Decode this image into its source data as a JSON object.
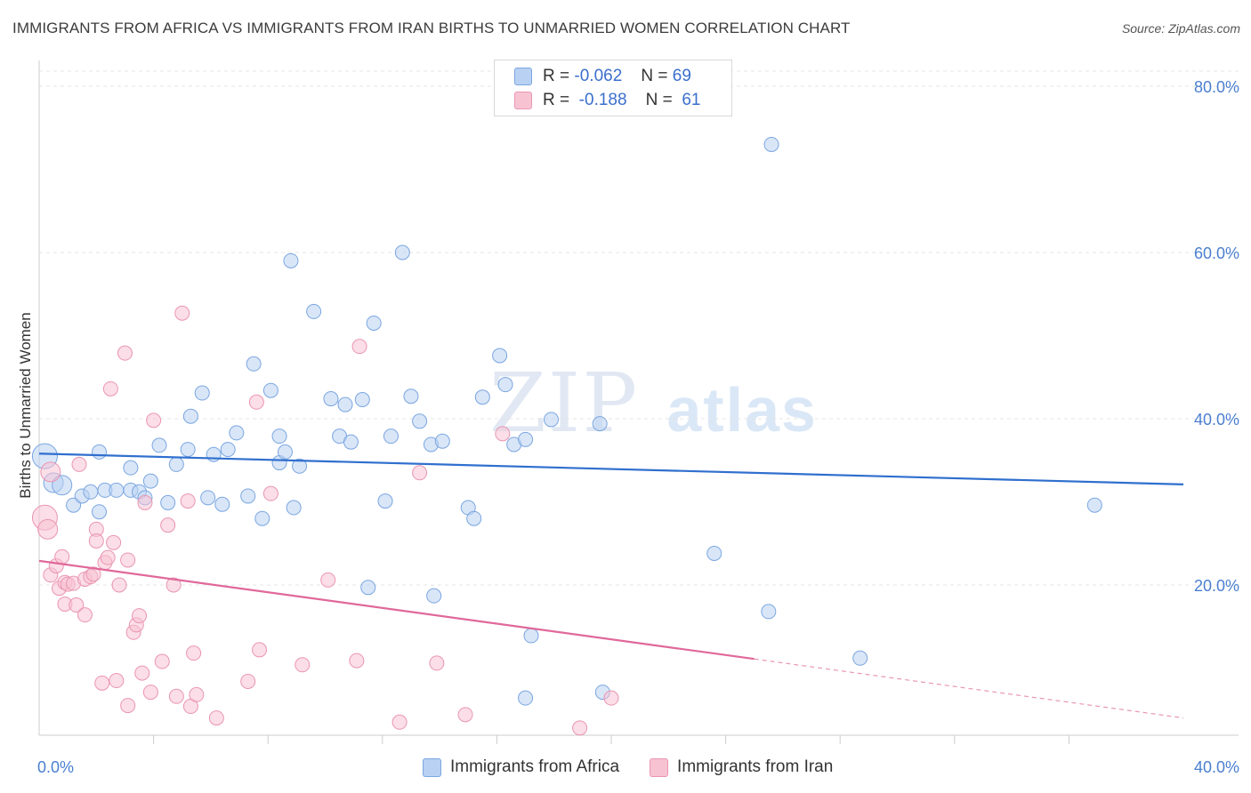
{
  "title": "IMMIGRANTS FROM AFRICA VS IMMIGRANTS FROM IRAN BIRTHS TO UNMARRIED WOMEN CORRELATION CHART",
  "source": "Source: ZipAtlas.com",
  "watermark": {
    "zip": "ZIP",
    "atlas": "atlas"
  },
  "legend": {
    "r_label": "R =",
    "n_label": "N =",
    "rows": [
      {
        "r": "-0.062",
        "n": "69"
      },
      {
        "r": "-0.188",
        "n": "61"
      }
    ]
  },
  "colors": {
    "africa_fill": "#b9d1f3",
    "africa_stroke": "#7aa6e0",
    "africa_line": "#2f6fce",
    "iran_fill": "#f7c3d3",
    "iran_stroke": "#ea95b2",
    "iran_line": "#e0689a",
    "tick_text": "#4a7fd0"
  },
  "chart_data": {
    "type": "scatter",
    "title": "IMMIGRANTS FROM AFRICA VS IMMIGRANTS FROM IRAN BIRTHS TO UNMARRIED WOMEN CORRELATION CHART",
    "xlabel": "",
    "ylabel": "Births to Unmarried Women",
    "xlim": [
      0,
      40
    ],
    "ylim": [
      0,
      80
    ],
    "x_tick_labels": [
      "0.0%",
      "40.0%"
    ],
    "y_tick_labels": [
      "20.0%",
      "40.0%",
      "60.0%",
      "80.0%"
    ],
    "y_tick_values": [
      20,
      40,
      60,
      80
    ],
    "x_minor_ticks": [
      4,
      8,
      12,
      16,
      20,
      24,
      28,
      32,
      36
    ],
    "grid": true,
    "series": [
      {
        "name": "Immigrants from Africa",
        "r": -0.062,
        "n": 69,
        "trend": {
          "x0": 0,
          "y0": 35.8,
          "x1": 40,
          "y1": 32.1
        },
        "points": [
          [
            0.2,
            35.5
          ],
          [
            0.5,
            32.3
          ],
          [
            0.8,
            32.0
          ],
          [
            1.2,
            29.6
          ],
          [
            1.5,
            30.7
          ],
          [
            1.8,
            31.2
          ],
          [
            2.1,
            28.8
          ],
          [
            2.1,
            36.0
          ],
          [
            2.3,
            31.4
          ],
          [
            2.7,
            31.4
          ],
          [
            3.2,
            31.4
          ],
          [
            3.2,
            34.1
          ],
          [
            3.5,
            31.2
          ],
          [
            3.7,
            30.5
          ],
          [
            3.9,
            32.5
          ],
          [
            4.2,
            36.8
          ],
          [
            4.5,
            29.9
          ],
          [
            4.8,
            34.5
          ],
          [
            5.2,
            36.3
          ],
          [
            5.3,
            40.3
          ],
          [
            5.7,
            43.1
          ],
          [
            5.9,
            30.5
          ],
          [
            6.1,
            35.7
          ],
          [
            6.4,
            29.7
          ],
          [
            6.6,
            36.3
          ],
          [
            6.9,
            38.3
          ],
          [
            7.3,
            30.7
          ],
          [
            7.5,
            46.6
          ],
          [
            7.8,
            28.0
          ],
          [
            8.1,
            43.4
          ],
          [
            8.4,
            37.9
          ],
          [
            8.4,
            34.7
          ],
          [
            8.6,
            36.0
          ],
          [
            8.8,
            59.0
          ],
          [
            8.9,
            29.3
          ],
          [
            9.1,
            34.3
          ],
          [
            9.6,
            52.9
          ],
          [
            10.2,
            42.4
          ],
          [
            10.5,
            37.9
          ],
          [
            10.7,
            41.7
          ],
          [
            10.9,
            37.2
          ],
          [
            11.3,
            42.3
          ],
          [
            11.5,
            19.7
          ],
          [
            11.7,
            51.5
          ],
          [
            12.1,
            30.1
          ],
          [
            12.3,
            37.9
          ],
          [
            12.7,
            60.0
          ],
          [
            13.0,
            42.7
          ],
          [
            13.3,
            39.7
          ],
          [
            13.7,
            36.9
          ],
          [
            13.8,
            18.7
          ],
          [
            14.1,
            37.3
          ],
          [
            15.0,
            29.3
          ],
          [
            15.2,
            28.0
          ],
          [
            15.5,
            42.6
          ],
          [
            16.1,
            47.6
          ],
          [
            16.3,
            44.1
          ],
          [
            16.6,
            36.9
          ],
          [
            17.0,
            37.5
          ],
          [
            17.0,
            6.4
          ],
          [
            17.2,
            13.9
          ],
          [
            17.9,
            39.9
          ],
          [
            19.7,
            7.1
          ],
          [
            19.6,
            39.4
          ],
          [
            23.6,
            23.8
          ],
          [
            25.6,
            73.0
          ],
          [
            25.5,
            16.8
          ],
          [
            28.7,
            11.2
          ],
          [
            36.9,
            29.6
          ]
        ]
      },
      {
        "name": "Immigrants from Iran",
        "r": -0.188,
        "n": 61,
        "trend": {
          "x0": 0,
          "y0": 22.9,
          "x1": 25.0,
          "y1": 11.1,
          "dash_x1": 40,
          "dash_y1": 4.0
        },
        "points": [
          [
            0.2,
            28.1
          ],
          [
            0.3,
            26.7
          ],
          [
            0.4,
            33.6
          ],
          [
            0.4,
            21.2
          ],
          [
            0.6,
            22.3
          ],
          [
            0.7,
            19.6
          ],
          [
            0.8,
            23.4
          ],
          [
            0.9,
            17.7
          ],
          [
            0.9,
            20.3
          ],
          [
            1.0,
            20.1
          ],
          [
            1.2,
            20.2
          ],
          [
            1.3,
            17.6
          ],
          [
            1.4,
            34.5
          ],
          [
            1.6,
            20.7
          ],
          [
            1.6,
            16.4
          ],
          [
            1.8,
            21.0
          ],
          [
            1.9,
            21.3
          ],
          [
            2.0,
            26.7
          ],
          [
            2.0,
            25.3
          ],
          [
            2.2,
            8.2
          ],
          [
            2.3,
            22.7
          ],
          [
            2.4,
            23.3
          ],
          [
            2.5,
            43.6
          ],
          [
            2.6,
            25.1
          ],
          [
            2.7,
            8.5
          ],
          [
            2.8,
            20.0
          ],
          [
            3.0,
            47.9
          ],
          [
            3.1,
            5.5
          ],
          [
            3.1,
            23.0
          ],
          [
            3.3,
            14.3
          ],
          [
            3.4,
            15.2
          ],
          [
            3.5,
            16.3
          ],
          [
            3.6,
            9.4
          ],
          [
            3.7,
            29.9
          ],
          [
            3.9,
            7.1
          ],
          [
            4.0,
            39.8
          ],
          [
            4.3,
            10.8
          ],
          [
            4.5,
            27.2
          ],
          [
            4.7,
            20.0
          ],
          [
            4.8,
            6.6
          ],
          [
            5.0,
            52.7
          ],
          [
            5.2,
            30.1
          ],
          [
            5.3,
            5.4
          ],
          [
            5.4,
            11.8
          ],
          [
            5.5,
            6.8
          ],
          [
            6.2,
            4.0
          ],
          [
            7.3,
            8.4
          ],
          [
            7.6,
            42.0
          ],
          [
            7.7,
            12.2
          ],
          [
            8.1,
            31.0
          ],
          [
            9.2,
            10.4
          ],
          [
            10.1,
            20.6
          ],
          [
            11.1,
            10.9
          ],
          [
            11.2,
            48.7
          ],
          [
            12.6,
            3.5
          ],
          [
            13.3,
            33.5
          ],
          [
            13.9,
            10.6
          ],
          [
            14.9,
            4.4
          ],
          [
            16.2,
            38.2
          ],
          [
            18.9,
            2.8
          ],
          [
            20.0,
            6.4
          ]
        ]
      }
    ]
  }
}
